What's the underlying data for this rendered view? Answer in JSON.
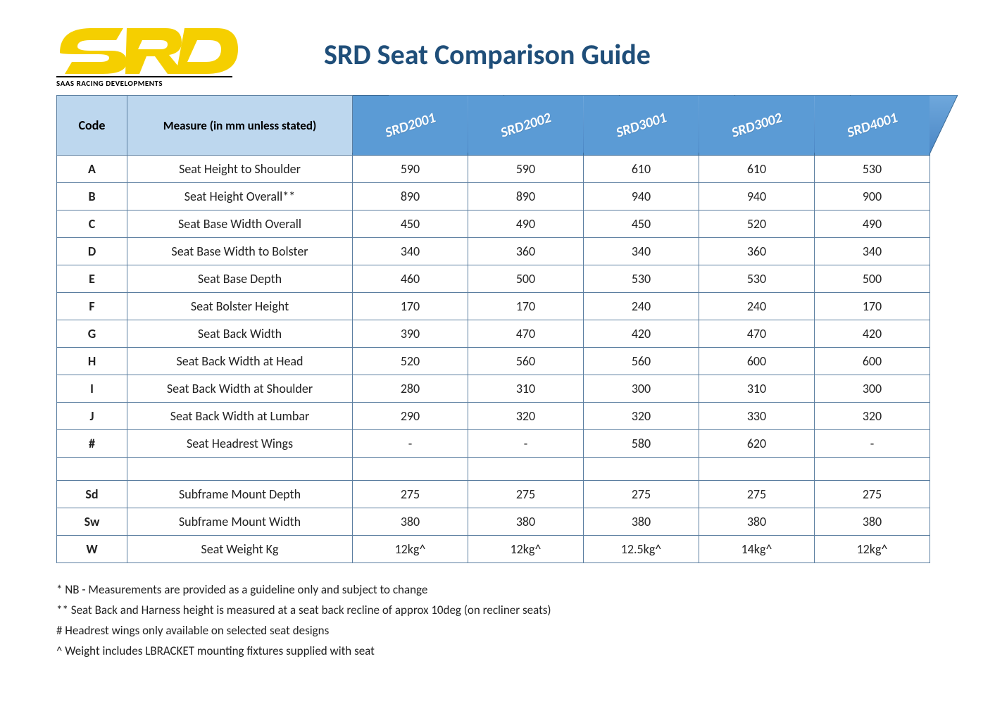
{
  "brand": {
    "logo_text": "SRD",
    "logo_color": "#f5cf00",
    "logo_tagline": "SAAS RACING DEVELOPMENTS"
  },
  "title": "SRD Seat Comparison Guide",
  "colors": {
    "title_color": "#1f4e79",
    "header_left_bg": "#bdd7ee",
    "header_model_bg": "#5b9bd5",
    "header_model_border": "#3b6a95",
    "border_color": "#5b7ea0",
    "text_color": "#222222",
    "bg_color": "#ffffff"
  },
  "table": {
    "header": {
      "code_label": "Code",
      "measure_label": "Measure (in mm unless stated)",
      "models": [
        "SRD2001",
        "SRD2002",
        "SRD3001",
        "SRD3002",
        "SRD4001"
      ]
    },
    "rows": [
      {
        "code": "A",
        "measure": "Seat Height to Shoulder",
        "v": [
          "590",
          "590",
          "610",
          "610",
          "530"
        ]
      },
      {
        "code": "B",
        "measure": "Seat Height Overall**",
        "v": [
          "890",
          "890",
          "940",
          "940",
          "900"
        ]
      },
      {
        "code": "C",
        "measure": "Seat Base Width Overall",
        "v": [
          "450",
          "490",
          "450",
          "520",
          "490"
        ]
      },
      {
        "code": "D",
        "measure": "Seat Base Width to Bolster",
        "v": [
          "340",
          "360",
          "340",
          "360",
          "340"
        ]
      },
      {
        "code": "E",
        "measure": "Seat Base Depth",
        "v": [
          "460",
          "500",
          "530",
          "530",
          "500"
        ]
      },
      {
        "code": "F",
        "measure": "Seat Bolster Height",
        "v": [
          "170",
          "170",
          "240",
          "240",
          "170"
        ]
      },
      {
        "code": "G",
        "measure": "Seat Back Width",
        "v": [
          "390",
          "470",
          "420",
          "470",
          "420"
        ]
      },
      {
        "code": "H",
        "measure": "Seat Back Width at Head",
        "v": [
          "520",
          "560",
          "560",
          "600",
          "600"
        ]
      },
      {
        "code": "I",
        "measure": "Seat Back Width at Shoulder",
        "v": [
          "280",
          "310",
          "300",
          "310",
          "300"
        ]
      },
      {
        "code": "J",
        "measure": "Seat Back Width at Lumbar",
        "v": [
          "290",
          "320",
          "320",
          "330",
          "320"
        ]
      },
      {
        "code": "#",
        "measure": "Seat Headrest Wings",
        "v": [
          "-",
          "-",
          "580",
          "620",
          "-"
        ]
      },
      {
        "spacer": true
      },
      {
        "code": "Sd",
        "measure": "Subframe Mount Depth",
        "v": [
          "275",
          "275",
          "275",
          "275",
          "275"
        ]
      },
      {
        "code": "Sw",
        "measure": "Subframe Mount Width",
        "v": [
          "380",
          "380",
          "380",
          "380",
          "380"
        ]
      },
      {
        "code": "W",
        "measure": "Seat Weight Kg",
        "v": [
          "12kg^",
          "12kg^",
          "12.5kg^",
          "14kg^",
          "12kg^"
        ]
      }
    ]
  },
  "notes": [
    "* NB - Measurements are provided as a guideline only and subject to change",
    "** Seat Back and Harness height is measured at a seat back recline of approx 10deg (on recliner seats)",
    "# Headrest wings only available on selected seat designs",
    "^ Weight includes LBRACKET mounting fixtures supplied with seat"
  ]
}
